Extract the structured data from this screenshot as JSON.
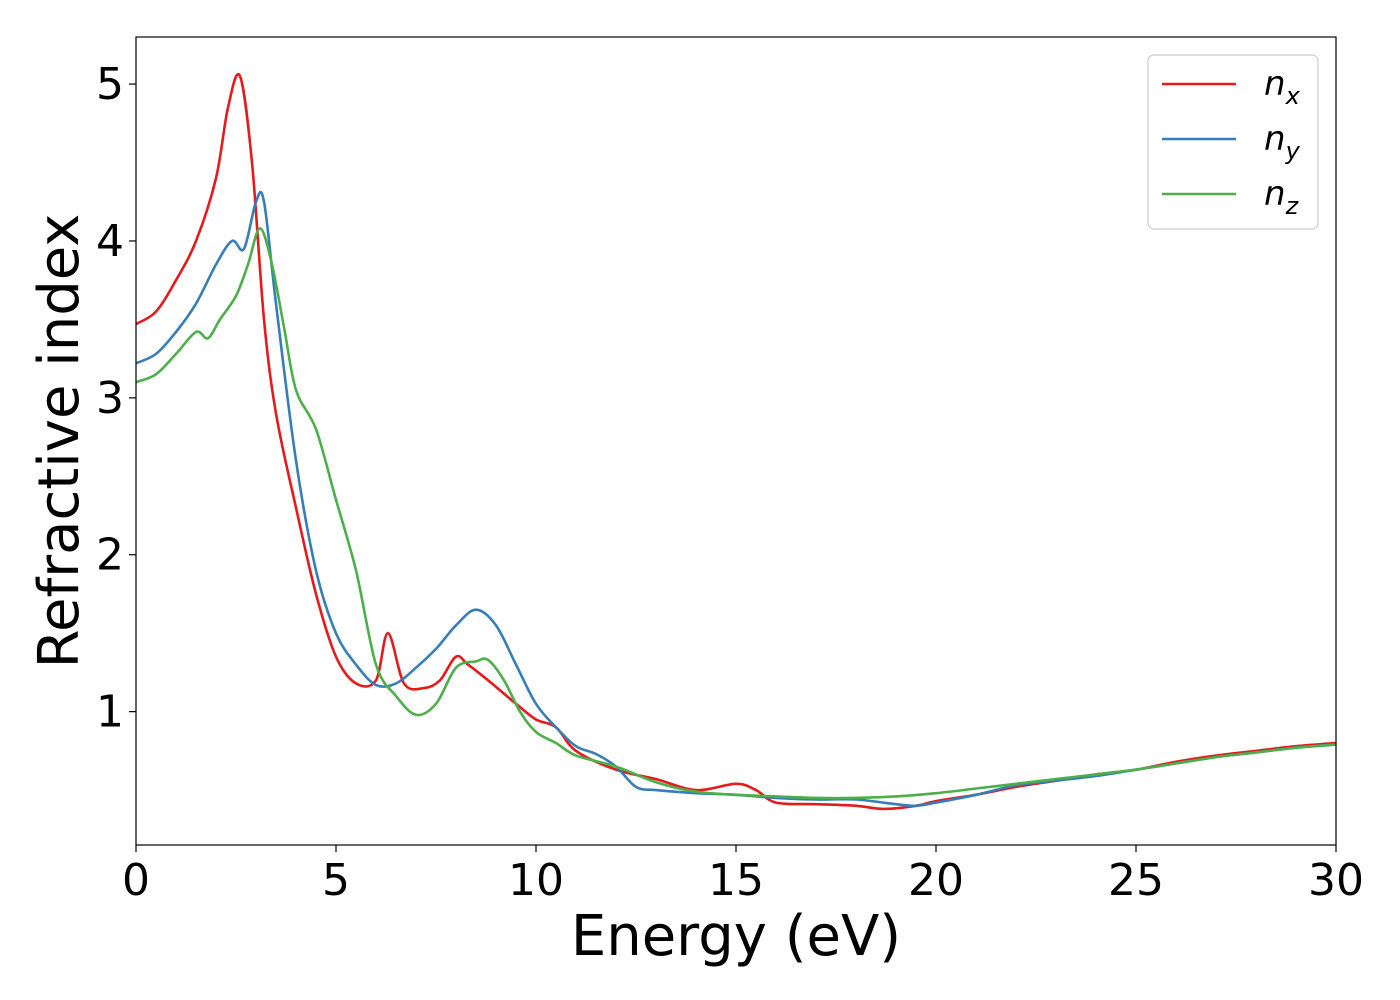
{
  "chart_data": {
    "type": "line",
    "xlabel": "Energy (eV)",
    "ylabel": "Refractive index",
    "xlim": [
      0,
      30
    ],
    "ylim": [
      0.15,
      5.3
    ],
    "x_ticks": [
      0,
      5,
      10,
      15,
      20,
      25,
      30
    ],
    "x_tick_labels": [
      "0",
      "5",
      "10",
      "15",
      "20",
      "25",
      "30"
    ],
    "y_ticks": [
      1,
      2,
      3,
      4,
      5
    ],
    "y_tick_labels": [
      "1",
      "2",
      "3",
      "4",
      "5"
    ],
    "grid": false,
    "legend_position": "top-right",
    "series": [
      {
        "name": "n",
        "subscript": "x",
        "color": "#e41a1c",
        "x": [
          0,
          0.5,
          1,
          1.5,
          2,
          2.3,
          2.6,
          2.9,
          3.2,
          3.5,
          4,
          4.5,
          5,
          5.5,
          6,
          6.3,
          6.7,
          7.2,
          7.6,
          8,
          8.3,
          8.8,
          9.5,
          10,
          10.5,
          11,
          12,
          13,
          14,
          15,
          15.5,
          16,
          17,
          18,
          18.7,
          19.5,
          20,
          21,
          22,
          23,
          24,
          25,
          26,
          27,
          28,
          29,
          30
        ],
        "y": [
          3.47,
          3.55,
          3.75,
          4.0,
          4.4,
          4.85,
          5.05,
          4.5,
          3.5,
          2.9,
          2.3,
          1.75,
          1.35,
          1.18,
          1.2,
          1.5,
          1.18,
          1.15,
          1.2,
          1.35,
          1.3,
          1.2,
          1.05,
          0.95,
          0.9,
          0.75,
          0.63,
          0.57,
          0.5,
          0.54,
          0.5,
          0.42,
          0.41,
          0.4,
          0.38,
          0.4,
          0.43,
          0.47,
          0.52,
          0.56,
          0.6,
          0.63,
          0.68,
          0.72,
          0.75,
          0.78,
          0.8
        ]
      },
      {
        "name": "n",
        "subscript": "y",
        "color": "#377eb8",
        "x": [
          0,
          0.5,
          1,
          1.5,
          2,
          2.4,
          2.7,
          3.0,
          3.2,
          3.5,
          4,
          4.5,
          5,
          5.5,
          6,
          6.5,
          7,
          7.5,
          8,
          8.5,
          9,
          9.5,
          10,
          10.5,
          11,
          11.5,
          12,
          12.5,
          13,
          14,
          15,
          16,
          17,
          18,
          19,
          19.5,
          20,
          21,
          22,
          23,
          24,
          25,
          26,
          27,
          28,
          29,
          30
        ],
        "y": [
          3.22,
          3.28,
          3.42,
          3.6,
          3.85,
          4.0,
          3.95,
          4.25,
          4.25,
          3.6,
          2.6,
          1.9,
          1.5,
          1.3,
          1.17,
          1.18,
          1.28,
          1.4,
          1.55,
          1.65,
          1.55,
          1.3,
          1.05,
          0.9,
          0.78,
          0.73,
          0.65,
          0.52,
          0.5,
          0.48,
          0.47,
          0.45,
          0.44,
          0.44,
          0.41,
          0.4,
          0.42,
          0.47,
          0.53,
          0.56,
          0.59,
          0.63,
          0.67,
          0.71,
          0.74,
          0.77,
          0.79
        ]
      },
      {
        "name": "n",
        "subscript": "z",
        "color": "#4daf4a",
        "x": [
          0,
          0.5,
          1,
          1.5,
          1.8,
          2.1,
          2.5,
          2.8,
          3.1,
          3.4,
          3.7,
          4,
          4.5,
          5,
          5.5,
          6,
          6.5,
          7,
          7.5,
          8,
          8.5,
          8.8,
          9.2,
          9.6,
          10,
          10.5,
          11,
          12,
          13,
          14,
          15,
          16,
          17,
          18,
          19,
          20,
          21,
          22,
          23,
          24,
          25,
          26,
          27,
          28,
          29,
          30
        ],
        "y": [
          3.1,
          3.15,
          3.28,
          3.42,
          3.38,
          3.5,
          3.65,
          3.85,
          4.08,
          3.85,
          3.45,
          3.05,
          2.8,
          2.35,
          1.9,
          1.3,
          1.1,
          0.98,
          1.05,
          1.28,
          1.32,
          1.33,
          1.2,
          1.0,
          0.87,
          0.8,
          0.72,
          0.65,
          0.55,
          0.49,
          0.47,
          0.46,
          0.45,
          0.45,
          0.46,
          0.48,
          0.51,
          0.54,
          0.57,
          0.6,
          0.63,
          0.67,
          0.71,
          0.74,
          0.77,
          0.79
        ]
      }
    ]
  }
}
